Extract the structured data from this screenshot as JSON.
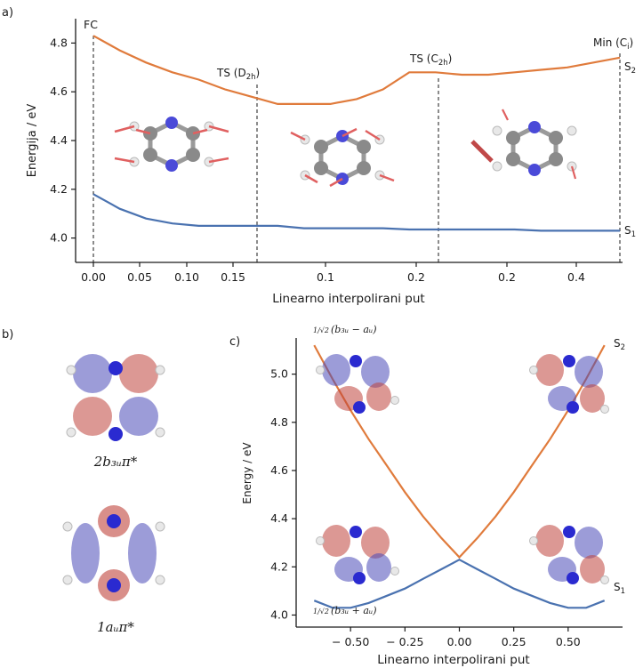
{
  "colors": {
    "s1": "#4a72b0",
    "s2": "#e07b3c",
    "axis": "#1a1a1a",
    "carbon": "#8a8a8a",
    "nitrogen": "#4a4ad8",
    "hydrogen": "#e8e8e8",
    "orbital_pos": "#c0443c",
    "orbital_neg": "#4a4ab8",
    "arrow": "#e06060"
  },
  "panel_a": {
    "label": "a)",
    "ylabel": "Energija / eV",
    "xlabel": "Linearno interpolirani put",
    "yticks": [
      "4.0",
      "4.2",
      "4.4",
      "4.6",
      "4.8"
    ],
    "xticks": [
      "0.00",
      "0.05",
      "0.10",
      "0.15",
      "0.1",
      "0.2",
      "0.2",
      "0.4"
    ],
    "annot_fc": "FC",
    "annot_ts1": "TS (D",
    "annot_ts1_sub": "2h",
    "annot_ts2": "TS (C",
    "annot_ts2_sub": "2h",
    "annot_min": "Min (C",
    "annot_min_sub": "i",
    "s2_label": "S",
    "s2_sub": "2",
    "s1_label": "S",
    "s1_sub": "1"
  },
  "panel_b": {
    "label": "b)",
    "orb1_label": "2b₃ᵤπ*",
    "orb2_label": "1aᵤπ*"
  },
  "panel_c": {
    "label": "c)",
    "ylabel": "Energy /  eV",
    "xlabel": "Linearno interpolirani put",
    "yticks": [
      "4.0",
      "4.2",
      "4.4",
      "4.6",
      "4.8",
      "5.0"
    ],
    "xticks": [
      "− 0.50",
      "− 0.25",
      "0.00",
      "0.25",
      "0.50"
    ],
    "top_formula": "(b₃ᵤ − aᵤ)",
    "bottom_formula": "(b₃ᵤ + aᵤ)",
    "formula_prefix": "1/√2",
    "s2_label": "S",
    "s2_sub": "2",
    "s1_label": "S",
    "s1_sub": "1"
  },
  "chart_data": [
    {
      "type": "line",
      "xlabel": "Linearno interpolirani put",
      "ylabel": "Energija / eV",
      "ylim": [
        3.9,
        4.9
      ],
      "x": [
        0.0,
        0.05,
        0.1,
        0.15,
        0.2,
        0.25,
        0.3,
        0.35,
        0.4,
        0.45,
        0.5,
        0.55,
        0.6,
        0.65,
        0.7,
        0.75,
        0.8,
        0.85,
        0.9,
        0.95,
        1.0
      ],
      "series": [
        {
          "name": "S2",
          "values": [
            4.83,
            4.77,
            4.72,
            4.68,
            4.65,
            4.61,
            4.58,
            4.55,
            4.55,
            4.55,
            4.57,
            4.61,
            4.68,
            4.68,
            4.67,
            4.67,
            4.68,
            4.69,
            4.7,
            4.72,
            4.74
          ]
        },
        {
          "name": "S1",
          "values": [
            4.18,
            4.12,
            4.08,
            4.06,
            4.05,
            4.05,
            4.05,
            4.05,
            4.04,
            4.04,
            4.04,
            4.04,
            4.035,
            4.035,
            4.035,
            4.035,
            4.035,
            4.03,
            4.03,
            4.03,
            4.03
          ]
        }
      ]
    },
    {
      "type": "line",
      "xlabel": "Linearno interpolirani put",
      "ylabel": "Energy /  eV",
      "ylim": [
        3.95,
        5.15
      ],
      "xlim": [
        -0.75,
        0.75
      ],
      "x": [
        -0.667,
        -0.583,
        -0.5,
        -0.417,
        -0.333,
        -0.25,
        -0.167,
        -0.083,
        0.0,
        0.083,
        0.167,
        0.25,
        0.333,
        0.417,
        0.5,
        0.583,
        0.667
      ],
      "series": [
        {
          "name": "S2",
          "values": [
            5.12,
            4.98,
            4.85,
            4.73,
            4.62,
            4.51,
            4.41,
            4.32,
            4.24,
            4.32,
            4.41,
            4.51,
            4.62,
            4.73,
            4.85,
            4.98,
            5.12
          ]
        },
        {
          "name": "S1",
          "values": [
            4.06,
            4.03,
            4.03,
            4.05,
            4.08,
            4.11,
            4.15,
            4.19,
            4.23,
            4.19,
            4.15,
            4.11,
            4.08,
            4.05,
            4.03,
            4.03,
            4.06
          ]
        }
      ]
    }
  ]
}
